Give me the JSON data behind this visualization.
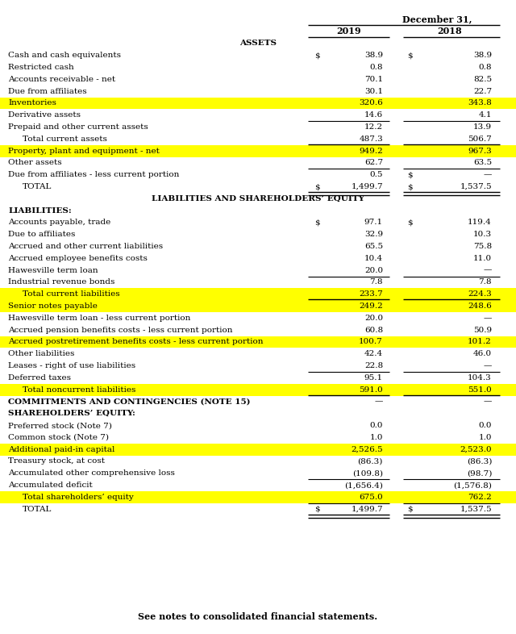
{
  "title_header": "December 31,",
  "col_2019": "2019",
  "col_2018": "2018",
  "footer_note": "See notes to consolidated financial statements.",
  "rows": [
    {
      "label": "ASSETS",
      "v2019": "",
      "v2018": "",
      "style": "center_bold",
      "highlight": false,
      "dollar2019": false,
      "dollar2018": false,
      "top_border": false,
      "bottom_border": false,
      "double_border": false
    },
    {
      "label": "Cash and cash equivalents",
      "v2019": "38.9",
      "v2018": "38.9",
      "style": "normal",
      "highlight": false,
      "dollar2019": true,
      "dollar2018": true,
      "top_border": false,
      "bottom_border": false,
      "double_border": false
    },
    {
      "label": "Restricted cash",
      "v2019": "0.8",
      "v2018": "0.8",
      "style": "normal",
      "highlight": false,
      "dollar2019": false,
      "dollar2018": false,
      "top_border": false,
      "bottom_border": false,
      "double_border": false
    },
    {
      "label": "Accounts receivable - net",
      "v2019": "70.1",
      "v2018": "82.5",
      "style": "normal",
      "highlight": false,
      "dollar2019": false,
      "dollar2018": false,
      "top_border": false,
      "bottom_border": false,
      "double_border": false
    },
    {
      "label": "Due from affiliates",
      "v2019": "30.1",
      "v2018": "22.7",
      "style": "normal",
      "highlight": false,
      "dollar2019": false,
      "dollar2018": false,
      "top_border": false,
      "bottom_border": false,
      "double_border": false
    },
    {
      "label": "Inventories",
      "v2019": "320.6",
      "v2018": "343.8",
      "style": "normal",
      "highlight": true,
      "dollar2019": false,
      "dollar2018": false,
      "top_border": false,
      "bottom_border": false,
      "double_border": false
    },
    {
      "label": "Derivative assets",
      "v2019": "14.6",
      "v2018": "4.1",
      "style": "normal",
      "highlight": false,
      "dollar2019": false,
      "dollar2018": false,
      "top_border": false,
      "bottom_border": false,
      "double_border": false
    },
    {
      "label": "Prepaid and other current assets",
      "v2019": "12.2",
      "v2018": "13.9",
      "style": "normal",
      "highlight": false,
      "dollar2019": false,
      "dollar2018": false,
      "top_border": true,
      "bottom_border": false,
      "double_border": false
    },
    {
      "label": "   Total current assets",
      "v2019": "487.3",
      "v2018": "506.7",
      "style": "indent",
      "highlight": false,
      "dollar2019": false,
      "dollar2018": false,
      "top_border": false,
      "bottom_border": true,
      "double_border": false
    },
    {
      "label": "Property, plant and equipment - net",
      "v2019": "949.2",
      "v2018": "967.3",
      "style": "normal",
      "highlight": true,
      "dollar2019": false,
      "dollar2018": false,
      "top_border": false,
      "bottom_border": false,
      "double_border": false
    },
    {
      "label": "Other assets",
      "v2019": "62.7",
      "v2018": "63.5",
      "style": "normal",
      "highlight": false,
      "dollar2019": false,
      "dollar2018": false,
      "top_border": false,
      "bottom_border": false,
      "double_border": false
    },
    {
      "label": "Due from affiliates - less current portion",
      "v2019": "0.5",
      "v2018": "—",
      "style": "normal",
      "highlight": false,
      "dollar2019": false,
      "dollar2018": true,
      "top_border": true,
      "bottom_border": false,
      "double_border": false
    },
    {
      "label": "   TOTAL",
      "v2019": "1,499.7",
      "v2018": "1,537.5",
      "style": "indent",
      "highlight": false,
      "dollar2019": true,
      "dollar2018": true,
      "top_border": false,
      "bottom_border": false,
      "double_border": true
    },
    {
      "label": "LIABILITIES AND SHAREHOLDERS’ EQUITY",
      "v2019": "",
      "v2018": "",
      "style": "center_bold",
      "highlight": false,
      "dollar2019": false,
      "dollar2018": false,
      "top_border": false,
      "bottom_border": false,
      "double_border": false
    },
    {
      "label": "LIABILITIES:",
      "v2019": "",
      "v2018": "",
      "style": "bold",
      "highlight": false,
      "dollar2019": false,
      "dollar2018": false,
      "top_border": false,
      "bottom_border": false,
      "double_border": false
    },
    {
      "label": "Accounts payable, trade",
      "v2019": "97.1",
      "v2018": "119.4",
      "style": "normal",
      "highlight": false,
      "dollar2019": true,
      "dollar2018": true,
      "top_border": false,
      "bottom_border": false,
      "double_border": false
    },
    {
      "label": "Due to affiliates",
      "v2019": "32.9",
      "v2018": "10.3",
      "style": "normal",
      "highlight": false,
      "dollar2019": false,
      "dollar2018": false,
      "top_border": false,
      "bottom_border": false,
      "double_border": false
    },
    {
      "label": "Accrued and other current liabilities",
      "v2019": "65.5",
      "v2018": "75.8",
      "style": "normal",
      "highlight": false,
      "dollar2019": false,
      "dollar2018": false,
      "top_border": false,
      "bottom_border": false,
      "double_border": false
    },
    {
      "label": "Accrued employee benefits costs",
      "v2019": "10.4",
      "v2018": "11.0",
      "style": "normal",
      "highlight": false,
      "dollar2019": false,
      "dollar2018": false,
      "top_border": false,
      "bottom_border": false,
      "double_border": false
    },
    {
      "label": "Hawesville term loan",
      "v2019": "20.0",
      "v2018": "—",
      "style": "normal",
      "highlight": false,
      "dollar2019": false,
      "dollar2018": false,
      "top_border": false,
      "bottom_border": false,
      "double_border": false
    },
    {
      "label": "Industrial revenue bonds",
      "v2019": "7.8",
      "v2018": "7.8",
      "style": "normal",
      "highlight": false,
      "dollar2019": false,
      "dollar2018": false,
      "top_border": true,
      "bottom_border": false,
      "double_border": false
    },
    {
      "label": "   Total current liabilities",
      "v2019": "233.7",
      "v2018": "224.3",
      "style": "indent",
      "highlight": true,
      "dollar2019": false,
      "dollar2018": false,
      "top_border": false,
      "bottom_border": true,
      "double_border": false
    },
    {
      "label": "Senior notes payable",
      "v2019": "249.2",
      "v2018": "248.6",
      "style": "normal",
      "highlight": true,
      "dollar2019": false,
      "dollar2018": false,
      "top_border": false,
      "bottom_border": false,
      "double_border": false
    },
    {
      "label": "Hawesville term loan - less current portion",
      "v2019": "20.0",
      "v2018": "—",
      "style": "normal",
      "highlight": false,
      "dollar2019": false,
      "dollar2018": false,
      "top_border": false,
      "bottom_border": false,
      "double_border": false
    },
    {
      "label": "Accrued pension benefits costs - less current portion",
      "v2019": "60.8",
      "v2018": "50.9",
      "style": "normal",
      "highlight": false,
      "dollar2019": false,
      "dollar2018": false,
      "top_border": false,
      "bottom_border": false,
      "double_border": false
    },
    {
      "label": "Accrued postretirement benefits costs - less current portion",
      "v2019": "100.7",
      "v2018": "101.2",
      "style": "normal",
      "highlight": true,
      "dollar2019": false,
      "dollar2018": false,
      "top_border": false,
      "bottom_border": false,
      "double_border": false
    },
    {
      "label": "Other liabilities",
      "v2019": "42.4",
      "v2018": "46.0",
      "style": "normal",
      "highlight": false,
      "dollar2019": false,
      "dollar2018": false,
      "top_border": false,
      "bottom_border": false,
      "double_border": false
    },
    {
      "label": "Leases - right of use liabilities",
      "v2019": "22.8",
      "v2018": "—",
      "style": "normal",
      "highlight": false,
      "dollar2019": false,
      "dollar2018": false,
      "top_border": false,
      "bottom_border": false,
      "double_border": false
    },
    {
      "label": "Deferred taxes",
      "v2019": "95.1",
      "v2018": "104.3",
      "style": "normal",
      "highlight": false,
      "dollar2019": false,
      "dollar2018": false,
      "top_border": true,
      "bottom_border": false,
      "double_border": false
    },
    {
      "label": "   Total noncurrent liabilities",
      "v2019": "591.0",
      "v2018": "551.0",
      "style": "indent",
      "highlight": true,
      "dollar2019": false,
      "dollar2018": false,
      "top_border": false,
      "bottom_border": true,
      "double_border": false
    },
    {
      "label": "COMMITMENTS AND CONTINGENCIES (NOTE 15)",
      "v2019": "—",
      "v2018": "—",
      "style": "bold",
      "highlight": false,
      "dollar2019": false,
      "dollar2018": false,
      "top_border": false,
      "bottom_border": false,
      "double_border": false
    },
    {
      "label": "SHAREHOLDERS’ EQUITY:",
      "v2019": "",
      "v2018": "",
      "style": "bold",
      "highlight": false,
      "dollar2019": false,
      "dollar2018": false,
      "top_border": false,
      "bottom_border": false,
      "double_border": false
    },
    {
      "label": "Preferred stock (Note 7)",
      "v2019": "0.0",
      "v2018": "0.0",
      "style": "normal",
      "highlight": false,
      "dollar2019": false,
      "dollar2018": false,
      "top_border": false,
      "bottom_border": false,
      "double_border": false
    },
    {
      "label": "Common stock (Note 7)",
      "v2019": "1.0",
      "v2018": "1.0",
      "style": "normal",
      "highlight": false,
      "dollar2019": false,
      "dollar2018": false,
      "top_border": false,
      "bottom_border": false,
      "double_border": false
    },
    {
      "label": "Additional paid-in capital",
      "v2019": "2,526.5",
      "v2018": "2,523.0",
      "style": "normal",
      "highlight": true,
      "dollar2019": false,
      "dollar2018": false,
      "top_border": false,
      "bottom_border": false,
      "double_border": false
    },
    {
      "label": "Treasury stock, at cost",
      "v2019": "(86.3)",
      "v2018": "(86.3)",
      "style": "normal",
      "highlight": false,
      "dollar2019": false,
      "dollar2018": false,
      "top_border": false,
      "bottom_border": false,
      "double_border": false
    },
    {
      "label": "Accumulated other comprehensive loss",
      "v2019": "(109.8)",
      "v2018": "(98.7)",
      "style": "normal",
      "highlight": false,
      "dollar2019": false,
      "dollar2018": false,
      "top_border": false,
      "bottom_border": false,
      "double_border": false
    },
    {
      "label": "Accumulated deficit",
      "v2019": "(1,656.4)",
      "v2018": "(1,576.8)",
      "style": "normal",
      "highlight": false,
      "dollar2019": false,
      "dollar2018": false,
      "top_border": true,
      "bottom_border": false,
      "double_border": false
    },
    {
      "label": "   Total shareholders’ equity",
      "v2019": "675.0",
      "v2018": "762.2",
      "style": "indent",
      "highlight": true,
      "dollar2019": false,
      "dollar2018": false,
      "top_border": false,
      "bottom_border": false,
      "double_border": false
    },
    {
      "label": "   TOTAL",
      "v2019": "1,499.7",
      "v2018": "1,537.5",
      "style": "indent",
      "highlight": false,
      "dollar2019": true,
      "dollar2018": true,
      "top_border": true,
      "bottom_border": false,
      "double_border": true
    }
  ],
  "highlight_color": "#FFFF00",
  "bg_color": "#FFFFFF",
  "text_color": "#000000"
}
